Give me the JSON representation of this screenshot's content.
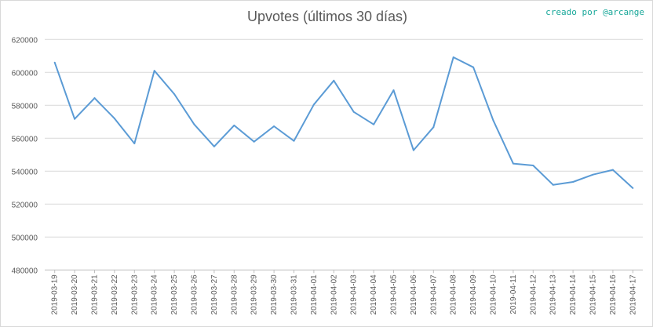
{
  "credit": "creado por @arcange",
  "chart_data": {
    "type": "line",
    "title": "Upvotes (últimos 30 días)",
    "xlabel": "",
    "ylabel": "",
    "ylim": [
      480000,
      620000
    ],
    "yticks": [
      "480000",
      "500000",
      "520000",
      "540000",
      "560000",
      "580000",
      "600000",
      "620000"
    ],
    "grid": true,
    "color": "#5b9bd5",
    "categories": [
      "2019-03-19",
      "2019-03-20",
      "2019-03-21",
      "2019-03-22",
      "2019-03-23",
      "2019-03-24",
      "2019-03-25",
      "2019-03-26",
      "2019-03-27",
      "2019-03-28",
      "2019-03-29",
      "2019-03-30",
      "2019-03-31",
      "2019-04-01",
      "2019-04-02",
      "2019-04-03",
      "2019-04-04",
      "2019-04-05",
      "2019-04-06",
      "2019-04-07",
      "2019-04-08",
      "2019-04-09",
      "2019-04-10",
      "2019-04-11",
      "2019-04-12",
      "2019-04-13",
      "2019-04-14",
      "2019-04-15",
      "2019-04-16",
      "2019-04-17"
    ],
    "values": [
      606000,
      571700,
      584400,
      572000,
      556800,
      601000,
      586800,
      568400,
      555000,
      567800,
      557900,
      567300,
      558400,
      580500,
      595000,
      576000,
      568400,
      589200,
      552700,
      566700,
      609200,
      603100,
      570800,
      544600,
      543500,
      531700,
      533500,
      537900,
      540800,
      529700
    ]
  }
}
